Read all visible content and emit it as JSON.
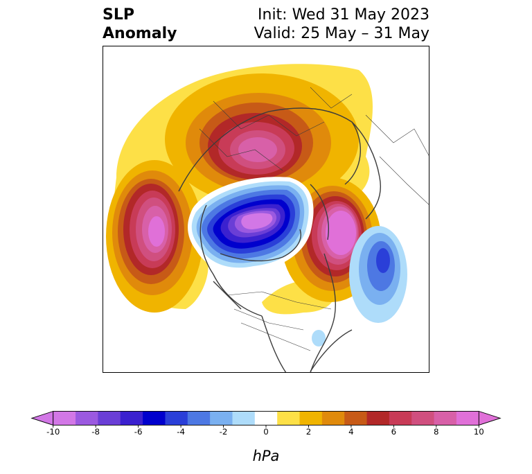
{
  "title": {
    "left_line1": "SLP",
    "left_line2": "Anomaly",
    "right_line1": "Init: Wed 31 May 2023",
    "right_line2": "Valid: 25 May – 31 May"
  },
  "colorbar": {
    "units": "hPa",
    "tick_labels": [
      "-10",
      "-8",
      "-6",
      "-4",
      "-2",
      "0",
      "2",
      "4",
      "6",
      "8",
      "10"
    ],
    "levels": [
      -10,
      -9,
      -8,
      -7,
      -6,
      -5,
      -4,
      -3,
      -2,
      -1,
      1,
      2,
      3,
      4,
      5,
      6,
      7,
      8,
      9,
      10
    ],
    "colors": [
      "#d277e6",
      "#9b59e0",
      "#6a3ed6",
      "#3b21cf",
      "#0000cd",
      "#2a3fd8",
      "#4d78e3",
      "#7ab0f0",
      "#aedcfa",
      "#ffffff",
      "#fde047",
      "#f0b400",
      "#e08a0b",
      "#c75a17",
      "#b22828",
      "#c83b57",
      "#d04f7f",
      "#d860a8",
      "#e070d8"
    ],
    "extend": "both",
    "over_color": "#e070d8",
    "under_color": "#d277e6"
  },
  "map": {
    "projection": "north-polar-stereographic",
    "features": [
      {
        "name": "high-north-pacific",
        "sign": "positive",
        "peak_hpa": 10
      },
      {
        "name": "high-siberia",
        "sign": "positive",
        "peak_hpa": 9
      },
      {
        "name": "high-greenland",
        "sign": "positive",
        "peak_hpa": 10
      },
      {
        "name": "low-arctic-basin",
        "sign": "negative",
        "peak_hpa": -10
      },
      {
        "name": "low-north-atlantic",
        "sign": "negative",
        "peak_hpa": -5
      }
    ]
  }
}
